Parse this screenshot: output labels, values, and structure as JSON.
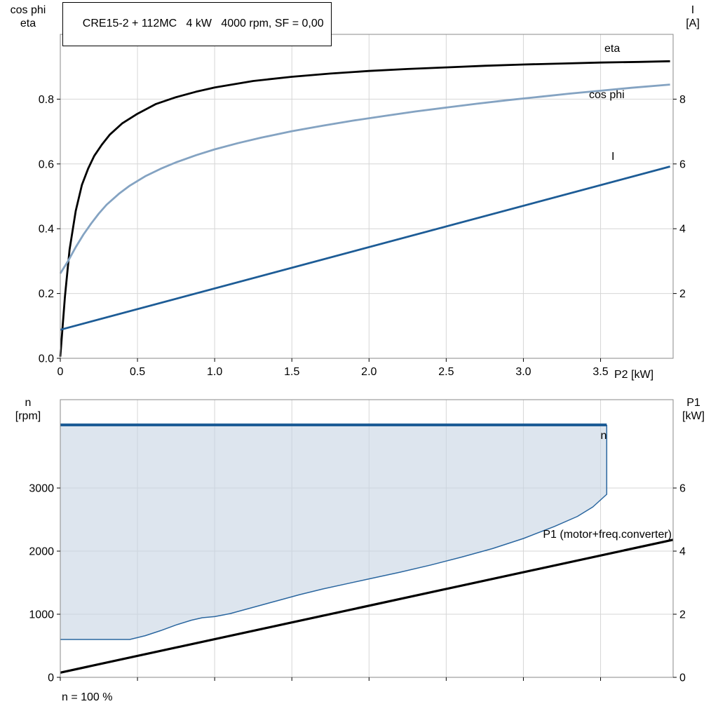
{
  "title": "CRE15-2 + 112MC   4 kW   4000 rpm, SF = 0,00",
  "footer_note": "n = 100 %",
  "corner_labels": {
    "top_left": [
      "cos phi",
      "eta"
    ],
    "top_right": [
      "I",
      "[A]"
    ],
    "bottom_left": [
      "n",
      "[rpm]"
    ],
    "bottom_right": [
      "P1",
      "[kW]"
    ],
    "x_axis": "P2 [kW]"
  },
  "colors": {
    "grid": "#d6d6d6",
    "border": "#8a8a8a",
    "tick": "#000000",
    "eta": "#000000",
    "cos_phi": "#84a3c2",
    "current": "#1d5c96",
    "speed_line": "#1d5c96",
    "speed_boundary": "#2a669f",
    "speed_region_fill": "#c6d4e2",
    "p1": "#000000"
  },
  "chart_data": [
    {
      "type": "line",
      "title": "CRE15-2 + 112MC   4 kW   4000 rpm, SF = 0,00",
      "xlabel": "P2 [kW]",
      "grid": true,
      "x_axis": {
        "range": [
          0,
          3.97
        ],
        "tick_values": [
          0,
          0.5,
          1,
          1.5,
          2,
          2.5,
          3,
          3.5
        ],
        "ticks": [
          "0",
          "0.5",
          "1.0",
          "1.5",
          "2.0",
          "2.5",
          "3.0",
          "3.5"
        ]
      },
      "left_axis": {
        "label": "cos phi / eta",
        "range": [
          0,
          1
        ],
        "ticks": [
          0,
          0.2,
          0.4,
          0.6,
          0.8
        ],
        "tick_labels": [
          "0.0",
          "0.2",
          "0.4",
          "0.6",
          "0.8"
        ]
      },
      "right_axis": {
        "label": "I [A]",
        "range": [
          0,
          10
        ],
        "ticks": [
          2,
          4,
          6,
          8
        ],
        "tick_labels": [
          "2",
          "4",
          "6",
          "8"
        ]
      },
      "series": [
        {
          "name": "eta",
          "label": "eta",
          "axis": "left",
          "color": "#000000",
          "width": 2.8,
          "points": [
            [
              0,
              0.005
            ],
            [
              0.03,
              0.19
            ],
            [
              0.06,
              0.335
            ],
            [
              0.1,
              0.455
            ],
            [
              0.14,
              0.535
            ],
            [
              0.18,
              0.585
            ],
            [
              0.22,
              0.625
            ],
            [
              0.27,
              0.66
            ],
            [
              0.32,
              0.69
            ],
            [
              0.4,
              0.725
            ],
            [
              0.5,
              0.755
            ],
            [
              0.62,
              0.785
            ],
            [
              0.75,
              0.806
            ],
            [
              0.88,
              0.823
            ],
            [
              1,
              0.836
            ],
            [
              1.25,
              0.856
            ],
            [
              1.5,
              0.869
            ],
            [
              1.75,
              0.879
            ],
            [
              2,
              0.887
            ],
            [
              2.25,
              0.893
            ],
            [
              2.5,
              0.898
            ],
            [
              2.75,
              0.903
            ],
            [
              3,
              0.907
            ],
            [
              3.25,
              0.91
            ],
            [
              3.5,
              0.913
            ],
            [
              3.75,
              0.915
            ],
            [
              3.95,
              0.917
            ]
          ]
        },
        {
          "name": "cos-phi",
          "label": "cos phi",
          "axis": "left",
          "color": "#84a3c2",
          "width": 2.8,
          "points": [
            [
              0,
              0.262
            ],
            [
              0.05,
              0.3
            ],
            [
              0.1,
              0.343
            ],
            [
              0.15,
              0.382
            ],
            [
              0.2,
              0.416
            ],
            [
              0.25,
              0.447
            ],
            [
              0.3,
              0.474
            ],
            [
              0.38,
              0.508
            ],
            [
              0.45,
              0.533
            ],
            [
              0.55,
              0.562
            ],
            [
              0.65,
              0.585
            ],
            [
              0.75,
              0.605
            ],
            [
              0.88,
              0.627
            ],
            [
              1,
              0.645
            ],
            [
              1.15,
              0.664
            ],
            [
              1.3,
              0.681
            ],
            [
              1.5,
              0.701
            ],
            [
              1.7,
              0.718
            ],
            [
              1.9,
              0.734
            ],
            [
              2.1,
              0.748
            ],
            [
              2.3,
              0.762
            ],
            [
              2.5,
              0.774
            ],
            [
              2.7,
              0.786
            ],
            [
              2.9,
              0.797
            ],
            [
              3.1,
              0.807
            ],
            [
              3.3,
              0.817
            ],
            [
              3.5,
              0.826
            ],
            [
              3.7,
              0.835
            ],
            [
              3.95,
              0.845
            ]
          ]
        },
        {
          "name": "current",
          "label": "I",
          "axis": "right",
          "color": "#1d5c96",
          "width": 2.8,
          "points": [
            [
              0,
              0.88
            ],
            [
              3.95,
              5.92
            ]
          ]
        }
      ]
    },
    {
      "type": "line",
      "title": "Speed range and input power",
      "grid": true,
      "x_axis": {
        "range": [
          0,
          3.97
        ],
        "tick_values": [
          0,
          0.5,
          1,
          1.5,
          2,
          2.5,
          3,
          3.5
        ],
        "ticks": [
          "",
          "",
          "",
          "",
          "",
          "",
          "",
          ""
        ]
      },
      "left_axis": {
        "label": "n [rpm]",
        "range": [
          0,
          4400
        ],
        "ticks": [
          0,
          1000,
          2000,
          3000
        ],
        "tick_labels": [
          "0",
          "1000",
          "2000",
          "3000"
        ]
      },
      "right_axis": {
        "label": "P1 [kW]",
        "range": [
          0,
          8.8
        ],
        "ticks": [
          0,
          2,
          4,
          6
        ],
        "tick_labels": [
          "0",
          "2",
          "4",
          "6"
        ]
      },
      "series": [
        {
          "name": "speed-region",
          "type": "polygon",
          "axis": "left",
          "color": "#c6d4e2",
          "opacity": 0.6,
          "points": [
            [
              0,
              600
            ],
            [
              0.45,
              600
            ],
            [
              0.55,
              660
            ],
            [
              0.65,
              740
            ],
            [
              0.75,
              830
            ],
            [
              0.85,
              905
            ],
            [
              0.92,
              945
            ],
            [
              1,
              962
            ],
            [
              1.1,
              1010
            ],
            [
              1.25,
              1110
            ],
            [
              1.4,
              1210
            ],
            [
              1.55,
              1310
            ],
            [
              1.7,
              1400
            ],
            [
              1.85,
              1480
            ],
            [
              2,
              1560
            ],
            [
              2.2,
              1665
            ],
            [
              2.4,
              1780
            ],
            [
              2.6,
              1905
            ],
            [
              2.8,
              2040
            ],
            [
              3,
              2200
            ],
            [
              3.2,
              2390
            ],
            [
              3.35,
              2550
            ],
            [
              3.45,
              2700
            ],
            [
              3.54,
              2900
            ],
            [
              3.54,
              4000
            ],
            [
              0,
              4000
            ]
          ]
        },
        {
          "name": "speed-min-boundary",
          "axis": "left",
          "color": "#2a669f",
          "width": 1.5,
          "points": [
            [
              0,
              600
            ],
            [
              0.45,
              600
            ],
            [
              0.55,
              660
            ],
            [
              0.65,
              740
            ],
            [
              0.75,
              830
            ],
            [
              0.85,
              905
            ],
            [
              0.92,
              945
            ],
            [
              1,
              962
            ],
            [
              1.1,
              1010
            ],
            [
              1.25,
              1110
            ],
            [
              1.4,
              1210
            ],
            [
              1.55,
              1310
            ],
            [
              1.7,
              1400
            ],
            [
              1.85,
              1480
            ],
            [
              2,
              1560
            ],
            [
              2.2,
              1665
            ],
            [
              2.4,
              1780
            ],
            [
              2.6,
              1905
            ],
            [
              2.8,
              2040
            ],
            [
              3,
              2200
            ],
            [
              3.2,
              2390
            ],
            [
              3.35,
              2550
            ],
            [
              3.45,
              2700
            ],
            [
              3.54,
              2900
            ],
            [
              3.54,
              4000
            ]
          ]
        },
        {
          "name": "speed",
          "label": "n",
          "axis": "left",
          "color": "#1d5c96",
          "width": 4,
          "points": [
            [
              0,
              4000
            ],
            [
              3.54,
              4000
            ]
          ]
        },
        {
          "name": "p1",
          "label": "P1 (motor+freq.converter)",
          "axis": "right",
          "color": "#000000",
          "width": 3.2,
          "points": [
            [
              0,
              0.15
            ],
            [
              3.97,
              4.36
            ]
          ]
        }
      ]
    }
  ]
}
